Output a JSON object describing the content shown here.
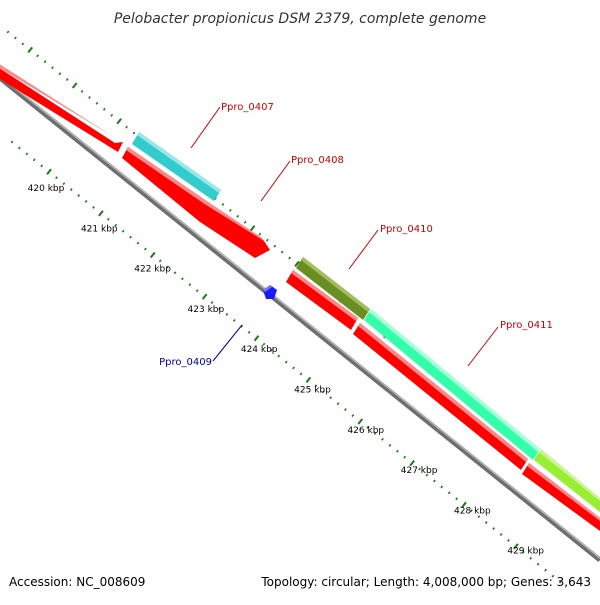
{
  "header": {
    "title": "Pelobacter propionicus DSM 2379, complete genome"
  },
  "footer": {
    "accession": "Accession: NC_008609",
    "summary": "Topology: circular; Length: 4,008,000 bp; Genes: 3,643"
  },
  "ticks": [
    {
      "label": "420 kbp",
      "kbp": 420
    },
    {
      "label": "421 kbp",
      "kbp": 421
    },
    {
      "label": "422 kbp",
      "kbp": 422
    },
    {
      "label": "423 kbp",
      "kbp": 423
    },
    {
      "label": "424 kbp",
      "kbp": 424
    },
    {
      "label": "425 kbp",
      "kbp": 425
    },
    {
      "label": "426 kbp",
      "kbp": 426
    },
    {
      "label": "427 kbp",
      "kbp": 427
    },
    {
      "label": "428 kbp",
      "kbp": 428
    },
    {
      "label": "429 kbp",
      "kbp": 429
    }
  ],
  "colors": {
    "backbone": "#8c8c8c",
    "cds": "#ff0000",
    "tick": "#1a7a1a",
    "label_red": "#cc0000",
    "label_blue": "#0000aa",
    "gene_0407": "#33cccc",
    "gene_0410": "#6b8e23",
    "gene_0411": "#33ffaa",
    "gene_0412": "#99ee33",
    "gene_0409": "#0000ff"
  },
  "genes": [
    {
      "id": "Ppro_0407",
      "label": "Ppro_0407",
      "label_color": "red",
      "fill": "gene_0407"
    },
    {
      "id": "Ppro_0408",
      "label": "Ppro_0408",
      "label_color": "red",
      "fill": "cds"
    },
    {
      "id": "Ppro_0409",
      "label": "Ppro_0409",
      "label_color": "blue",
      "fill": "gene_0409"
    },
    {
      "id": "Ppro_0410",
      "label": "Ppro_0410",
      "label_color": "red",
      "fill": "gene_0410"
    },
    {
      "id": "Ppro_0411",
      "label": "Ppro_0411",
      "label_color": "red",
      "fill": "gene_0411"
    }
  ]
}
